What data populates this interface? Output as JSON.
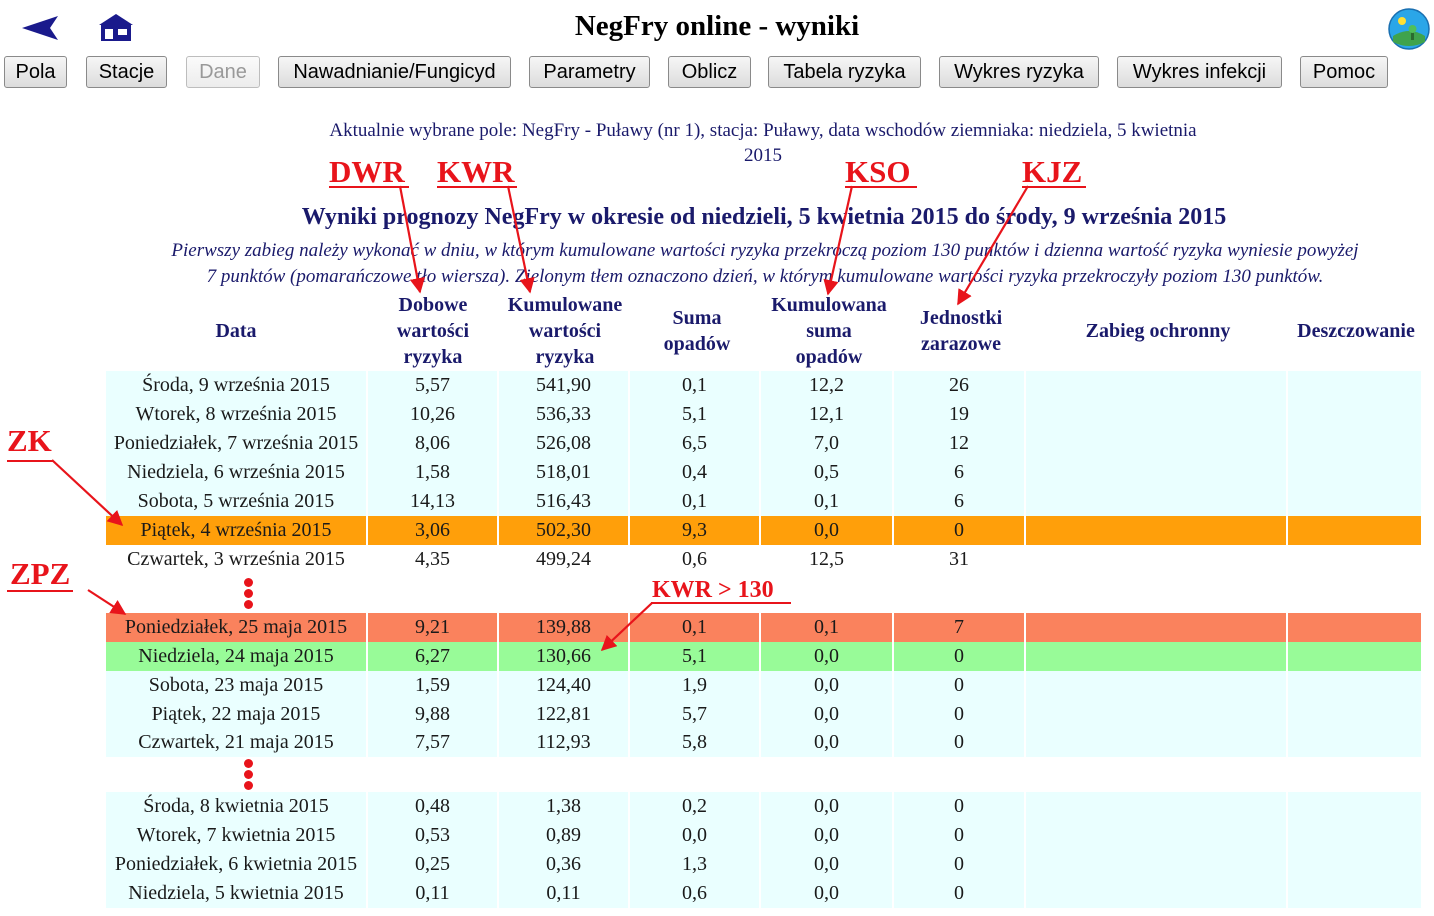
{
  "header": {
    "title": "NegFry online - wyniki"
  },
  "nav": {
    "buttons": [
      "Pola",
      "Stacje",
      "Dane",
      "Nawadnianie/Fungicyd",
      "Parametry",
      "Oblicz",
      "Tabela ryzyka",
      "Wykres ryzyka",
      "Wykres infekcji",
      "Pomoc"
    ]
  },
  "info": {
    "line1": "Aktualnie wybrane pole: NegFry - Puławy (nr 1), stacja: Puławy, data wschodów ziemniaka: niedziela, 5 kwietnia",
    "line2": "2015"
  },
  "results": {
    "heading": "Wyniki prognozy NegFry w okresie od niedzieli, 5 kwietnia 2015 do środy, 9 września 2015",
    "instructions_1": "Pierwszy zabieg należy wykonać w dniu, w którym kumulowane wartości ryzyka przekroczą poziom 130 punktów i dzienna wartość ryzyka wyniesie powyżej",
    "instructions_2": "7 punktów (pomarańczowe tło wiersza). Zielonym tłem oznaczono dzień, w którym kumulowane wartości ryzyka przekroczyły poziom 130 punktów."
  },
  "table": {
    "headers": [
      {
        "lines": [
          "Data"
        ]
      },
      {
        "lines": [
          "Dobowe",
          "wartości",
          "ryzyka"
        ]
      },
      {
        "lines": [
          "Kumulowane",
          "wartości",
          "ryzyka"
        ]
      },
      {
        "lines": [
          "Suma",
          "opadów"
        ]
      },
      {
        "lines": [
          "Kumulowana",
          "suma",
          "opadów"
        ]
      },
      {
        "lines": [
          "Jednostki",
          "zarazowe"
        ]
      },
      {
        "lines": [
          "Zabieg ochronny"
        ]
      },
      {
        "lines": [
          "Deszczowanie"
        ]
      }
    ],
    "rows": [
      {
        "cells": [
          "Środa, 9 września 2015",
          "5,57",
          "541,90",
          "0,1",
          "12,2",
          "26",
          "",
          ""
        ],
        "style": "light"
      },
      {
        "cells": [
          "Wtorek, 8 września 2015",
          "10,26",
          "536,33",
          "5,1",
          "12,1",
          "19",
          "",
          ""
        ],
        "style": "light"
      },
      {
        "cells": [
          "Poniedziałek, 7 września 2015",
          "8,06",
          "526,08",
          "6,5",
          "7,0",
          "12",
          "",
          ""
        ],
        "style": "light"
      },
      {
        "cells": [
          "Niedziela, 6 września 2015",
          "1,58",
          "518,01",
          "0,4",
          "0,5",
          "6",
          "",
          ""
        ],
        "style": "light"
      },
      {
        "cells": [
          "Sobota, 5 września 2015",
          "14,13",
          "516,43",
          "0,1",
          "0,1",
          "6",
          "",
          ""
        ],
        "style": "light"
      },
      {
        "cells": [
          "Piątek, 4 września 2015",
          "3,06",
          "502,30",
          "9,3",
          "0,0",
          "0",
          "",
          ""
        ],
        "style": "orange"
      },
      {
        "cells": [
          "Czwartek, 3 września 2015",
          "4,35",
          "499,24",
          "0,6",
          "12,5",
          "31",
          "",
          ""
        ],
        "style": "white"
      },
      {
        "cells": [
          "Poniedziałek, 25 maja 2015",
          "9,21",
          "139,88",
          "0,1",
          "0,1",
          "7",
          "",
          ""
        ],
        "style": "salmon"
      },
      {
        "cells": [
          "Niedziela, 24 maja 2015",
          "6,27",
          "130,66",
          "5,1",
          "0,0",
          "0",
          "",
          ""
        ],
        "style": "green"
      },
      {
        "cells": [
          "Sobota, 23 maja 2015",
          "1,59",
          "124,40",
          "1,9",
          "0,0",
          "0",
          "",
          ""
        ],
        "style": "light"
      },
      {
        "cells": [
          "Piątek, 22 maja 2015",
          "9,88",
          "122,81",
          "5,7",
          "0,0",
          "0",
          "",
          ""
        ],
        "style": "light"
      },
      {
        "cells": [
          "Czwartek, 21 maja 2015",
          "7,57",
          "112,93",
          "5,8",
          "0,0",
          "0",
          "",
          ""
        ],
        "style": "light"
      },
      {
        "cells": [
          "Środa, 8 kwietnia 2015",
          "0,48",
          "1,38",
          "0,2",
          "0,0",
          "0",
          "",
          ""
        ],
        "style": "light"
      },
      {
        "cells": [
          "Wtorek, 7 kwietnia 2015",
          "0,53",
          "0,89",
          "0,0",
          "0,0",
          "0",
          "",
          ""
        ],
        "style": "light"
      },
      {
        "cells": [
          "Poniedziałek, 6 kwietnia 2015",
          "0,25",
          "0,36",
          "1,3",
          "0,0",
          "0",
          "",
          ""
        ],
        "style": "light"
      },
      {
        "cells": [
          "Niedziela, 5 kwietnia 2015",
          "0,11",
          "0,11",
          "0,6",
          "0,0",
          "0",
          "",
          ""
        ],
        "style": "light"
      }
    ]
  },
  "annotations": {
    "dwr": "DWR",
    "kwr": "KWR",
    "kso": "KSO",
    "kjz": "KJZ",
    "zk": "ZK",
    "zpz": "ZPZ",
    "kwr130": "KWR > 130"
  },
  "colors": {
    "row_light": "#eaffff",
    "row_orange": "#ff9f0a",
    "row_salmon": "#fa825d",
    "row_green": "#98fb98",
    "annotation_red": "#e8141b",
    "text_navy": "#1a1a6b"
  },
  "icons": {
    "back": "back-arrow-icon",
    "home": "home-icon",
    "logo": "logo-icon"
  }
}
